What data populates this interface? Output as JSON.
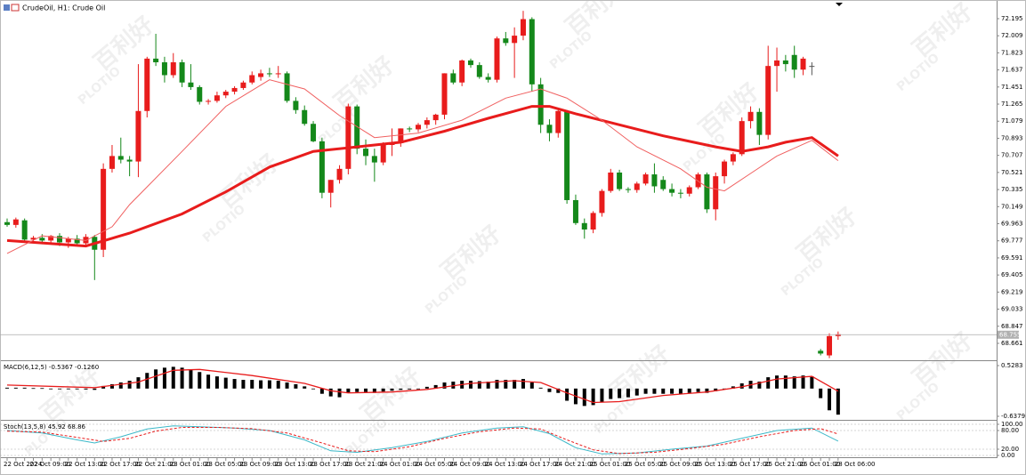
{
  "header": {
    "title": "CrudeOil, H1:  Crude Oil"
  },
  "watermark": [
    "百利好",
    "PLOTIO"
  ],
  "chart_data": [
    {
      "type": "candlestick",
      "categories": [
        "22 Oct 2024",
        null,
        null,
        "22 Oct 09:00",
        null,
        null,
        null,
        "22 Oct 13:00",
        null,
        null,
        null,
        "22 Oct 17:00",
        null,
        null,
        null,
        "22 Oct 21:00",
        null,
        null,
        null,
        "23 Oct 01:00",
        null,
        null,
        null,
        "23 Oct 05:00",
        null,
        null,
        null,
        "23 Oct 09:00",
        null,
        null,
        null,
        "23 Oct 13:00",
        null,
        null,
        null,
        "23 Oct 17:00",
        null,
        null,
        null,
        "23 Oct 21:00",
        null,
        null,
        null,
        "24 Oct 01:00",
        null,
        null,
        null,
        "24 Oct 05:00",
        null,
        null,
        null,
        "24 Oct 09:00",
        null,
        null,
        null,
        "24 Oct 13:00",
        null,
        null,
        null,
        "24 Oct 17:00",
        null,
        null,
        null,
        "24 Oct 21:00",
        null,
        null,
        null,
        "25 Oct 01:00",
        null,
        null,
        null,
        "25 Oct 05:00",
        null,
        null,
        null,
        "25 Oct 09:00",
        null,
        null,
        null,
        "25 Oct 13:00",
        null,
        null,
        null,
        "25 Oct 17:00",
        null,
        null,
        null,
        "25 Oct 21:00",
        null,
        null,
        null,
        "26 Oct 01:00",
        null,
        null,
        null,
        "28 Oct 06:00"
      ],
      "open": [
        69.98,
        69.95,
        70.0,
        69.79,
        69.81,
        69.78,
        69.83,
        69.76,
        69.8,
        69.75,
        69.82,
        69.68,
        70.56,
        70.7,
        70.66,
        70.64,
        71.19,
        71.76,
        71.72,
        71.58,
        71.72,
        71.5,
        71.45,
        71.29,
        71.3,
        71.36,
        71.4,
        71.44,
        71.5,
        71.56,
        71.6,
        71.59,
        71.6,
        71.3,
        71.2,
        71.05,
        70.86,
        70.3,
        70.44,
        70.56,
        71.24,
        70.78,
        70.7,
        70.63,
        70.82,
        70.84,
        71.0,
        70.99,
        71.04,
        71.09,
        71.15,
        71.6,
        71.5,
        71.74,
        71.69,
        71.56,
        71.53,
        71.98,
        71.93,
        72.01,
        72.19,
        71.48,
        71.04,
        70.95,
        71.19,
        70.22,
        69.97,
        69.9,
        70.08,
        70.32,
        70.52,
        70.34,
        70.33,
        70.4,
        70.5,
        70.44,
        70.34,
        70.3,
        70.29,
        70.36,
        70.5,
        70.12,
        70.48,
        70.64,
        70.72,
        71.08,
        71.18,
        70.93,
        71.68,
        71.74,
        71.8,
        71.64,
        71.68,
        68.58,
        68.53,
        68.74
      ],
      "high": [
        70.02,
        70.03,
        70.02,
        69.83,
        69.85,
        69.84,
        69.86,
        69.82,
        69.84,
        69.85,
        69.84,
        70.62,
        70.82,
        70.9,
        70.7,
        71.7,
        71.78,
        72.03,
        71.78,
        71.82,
        71.75,
        71.7,
        71.47,
        71.32,
        71.4,
        71.42,
        71.46,
        71.52,
        71.62,
        71.64,
        71.66,
        71.68,
        71.62,
        71.34,
        71.25,
        71.08,
        70.9,
        70.44,
        70.6,
        71.27,
        71.26,
        70.88,
        70.78,
        70.85,
        71.0,
        71.0,
        71.02,
        71.06,
        71.12,
        71.16,
        71.6,
        71.64,
        71.75,
        71.76,
        71.72,
        71.6,
        72.0,
        72.05,
        72.1,
        72.28,
        72.21,
        71.55,
        71.1,
        71.22,
        71.2,
        70.28,
        70.02,
        70.1,
        70.34,
        70.56,
        70.55,
        70.36,
        70.42,
        70.52,
        70.62,
        70.48,
        70.4,
        70.34,
        70.38,
        70.52,
        70.52,
        70.52,
        70.66,
        70.74,
        71.12,
        71.24,
        71.22,
        71.9,
        71.88,
        71.8,
        71.9,
        71.78,
        71.72,
        68.6,
        68.77,
        68.79
      ],
      "low": [
        69.93,
        69.92,
        69.77,
        69.75,
        69.74,
        69.74,
        69.72,
        69.7,
        69.73,
        69.72,
        69.35,
        69.6,
        70.52,
        70.62,
        70.48,
        70.47,
        71.12,
        71.68,
        71.5,
        71.55,
        71.45,
        71.42,
        71.26,
        71.26,
        71.28,
        71.33,
        71.37,
        71.42,
        71.48,
        71.52,
        71.56,
        71.55,
        71.28,
        71.16,
        71.03,
        70.85,
        70.24,
        70.14,
        70.4,
        70.5,
        70.72,
        70.6,
        70.42,
        70.6,
        70.7,
        70.8,
        70.96,
        70.96,
        71.0,
        71.04,
        71.1,
        71.48,
        71.46,
        71.66,
        71.54,
        71.5,
        71.5,
        71.9,
        71.55,
        71.96,
        71.4,
        70.95,
        70.86,
        70.9,
        70.18,
        69.95,
        69.8,
        69.86,
        70.04,
        70.3,
        70.32,
        70.3,
        70.3,
        70.38,
        70.3,
        70.32,
        70.26,
        70.24,
        70.26,
        70.34,
        70.08,
        70.0,
        70.4,
        70.6,
        70.7,
        71.0,
        70.82,
        70.88,
        71.4,
        71.62,
        71.55,
        71.58,
        71.58,
        68.53,
        68.5,
        68.7
      ],
      "close": [
        69.95,
        70.01,
        69.79,
        69.81,
        69.78,
        69.83,
        69.76,
        69.8,
        69.75,
        69.82,
        69.68,
        70.56,
        70.7,
        70.66,
        70.64,
        71.19,
        71.76,
        71.72,
        71.58,
        71.72,
        71.5,
        71.45,
        71.29,
        71.3,
        71.36,
        71.4,
        71.44,
        71.5,
        71.58,
        71.6,
        71.59,
        71.6,
        71.3,
        71.2,
        71.05,
        70.86,
        70.3,
        70.44,
        70.56,
        71.24,
        70.78,
        70.7,
        70.63,
        70.82,
        70.84,
        71.0,
        70.99,
        71.04,
        71.09,
        71.15,
        71.6,
        71.5,
        71.74,
        71.69,
        71.56,
        71.53,
        71.98,
        71.93,
        72.01,
        72.19,
        71.48,
        71.04,
        70.95,
        71.19,
        70.22,
        69.97,
        69.9,
        70.08,
        70.32,
        70.52,
        70.34,
        70.33,
        70.4,
        70.5,
        70.37,
        70.34,
        70.3,
        70.29,
        70.36,
        70.5,
        70.12,
        70.48,
        70.64,
        70.72,
        71.08,
        71.18,
        70.93,
        71.68,
        71.74,
        71.7,
        71.64,
        71.76,
        71.68,
        68.55,
        68.74,
        68.76
      ],
      "up_color": "#e81c1c",
      "down_color": "#14881a",
      "series": [
        {
          "color": "#e81c1c",
          "width": 3,
          "x": [
            0,
            9,
            14,
            20,
            25,
            30,
            35,
            40,
            45,
            50,
            55,
            60,
            62,
            65,
            70,
            75,
            81,
            84,
            87,
            89,
            92,
            95
          ],
          "values": [
            69.78,
            69.72,
            69.86,
            70.07,
            70.31,
            70.58,
            70.75,
            70.8,
            70.85,
            70.97,
            71.11,
            71.24,
            71.24,
            71.16,
            71.04,
            70.92,
            70.8,
            70.75,
            70.8,
            70.85,
            70.9,
            70.7
          ]
        },
        {
          "color": "#f06060",
          "width": 1,
          "x": [
            0,
            4,
            9,
            12,
            14,
            20,
            25,
            30,
            34,
            38,
            42,
            47,
            52,
            57,
            61,
            64,
            68,
            72,
            77,
            80,
            82,
            85,
            88,
            92,
            95
          ],
          "values": [
            69.64,
            69.83,
            69.78,
            69.93,
            70.17,
            70.75,
            71.24,
            71.53,
            71.43,
            71.14,
            70.9,
            70.95,
            71.09,
            71.33,
            71.43,
            71.33,
            71.09,
            70.8,
            70.56,
            70.36,
            70.32,
            70.51,
            70.7,
            70.87,
            70.65
          ]
        }
      ],
      "ylim": [
        68.477,
        72.398
      ],
      "yticks": [
        72.195,
        72.009,
        71.823,
        71.637,
        71.451,
        71.265,
        71.079,
        70.893,
        70.707,
        70.521,
        70.335,
        70.149,
        69.963,
        69.777,
        69.591,
        69.405,
        69.219,
        69.033,
        68.847,
        68.661
      ],
      "current_price": 68.755,
      "grid": false
    },
    {
      "type": "macd",
      "title": "MACD(6,12,5) -0.5367 -0.1260",
      "histogram": {
        "color": "#000000",
        "values": [
          0.02,
          0.02,
          0.02,
          0.01,
          0.01,
          0.0,
          0.0,
          -0.01,
          -0.01,
          -0.02,
          -0.03,
          0.06,
          0.1,
          0.14,
          0.18,
          0.26,
          0.36,
          0.44,
          0.48,
          0.5,
          0.48,
          0.44,
          0.38,
          0.32,
          0.28,
          0.25,
          0.22,
          0.2,
          0.2,
          0.19,
          0.19,
          0.18,
          0.14,
          0.1,
          0.05,
          0.0,
          -0.12,
          -0.18,
          -0.2,
          -0.1,
          -0.08,
          -0.08,
          -0.1,
          -0.07,
          -0.05,
          -0.03,
          -0.02,
          0.0,
          0.04,
          0.08,
          0.14,
          0.16,
          0.18,
          0.18,
          0.17,
          0.16,
          0.2,
          0.2,
          0.2,
          0.22,
          0.14,
          0.02,
          -0.08,
          -0.1,
          -0.28,
          -0.36,
          -0.4,
          -0.38,
          -0.32,
          -0.24,
          -0.22,
          -0.2,
          -0.16,
          -0.12,
          -0.12,
          -0.12,
          -0.12,
          -0.12,
          -0.1,
          -0.08,
          -0.1,
          -0.06,
          0.0,
          0.05,
          0.12,
          0.18,
          0.16,
          0.26,
          0.3,
          0.3,
          0.28,
          0.3,
          0.28,
          -0.22,
          -0.5,
          -0.6
        ]
      },
      "series": [
        {
          "color": "#e81c1c",
          "width": 1.3,
          "x": [
            0,
            10,
            15,
            19,
            22,
            28,
            34,
            37,
            39,
            44,
            48,
            53,
            58,
            61,
            64,
            67,
            70,
            75,
            80,
            84,
            88,
            92,
            95
          ],
          "values": [
            0.08,
            0.02,
            0.15,
            0.42,
            0.44,
            0.3,
            0.12,
            -0.05,
            -0.1,
            -0.08,
            -0.02,
            0.12,
            0.18,
            0.14,
            -0.1,
            -0.32,
            -0.3,
            -0.16,
            -0.08,
            0.04,
            0.22,
            0.28,
            -0.06
          ]
        }
      ],
      "ylim": [
        -0.699,
        0.61
      ],
      "yticks": [
        0.5283,
        -0.6379
      ]
    },
    {
      "type": "stoch",
      "title": "Stoch(13,5,8) 45.92 68.86",
      "series": [
        {
          "color": "#3cb8c8",
          "width": 1,
          "x": [
            0,
            4,
            8,
            10,
            13,
            16,
            19,
            22,
            26,
            30,
            34,
            37,
            40,
            44,
            48,
            52,
            56,
            59,
            62,
            65,
            68,
            72,
            76,
            80,
            84,
            88,
            92,
            95
          ],
          "values": [
            80,
            72,
            50,
            40,
            60,
            85,
            95,
            92,
            88,
            80,
            50,
            15,
            10,
            25,
            45,
            72,
            88,
            92,
            70,
            25,
            5,
            8,
            20,
            30,
            55,
            80,
            88,
            46
          ]
        },
        {
          "color": "#e81c1c",
          "width": 1,
          "dash": "3,2",
          "x": [
            0,
            4,
            8,
            11,
            14,
            17,
            20,
            24,
            28,
            32,
            36,
            39,
            42,
            46,
            50,
            54,
            58,
            61,
            64,
            67,
            70,
            74,
            78,
            82,
            86,
            90,
            93,
            95
          ],
          "values": [
            78,
            75,
            58,
            45,
            55,
            78,
            90,
            90,
            86,
            72,
            40,
            15,
            12,
            28,
            55,
            76,
            88,
            85,
            50,
            18,
            6,
            10,
            22,
            36,
            60,
            80,
            86,
            69
          ]
        }
      ],
      "ylim": [
        -5.7,
        108.6
      ],
      "yticks": [
        {
          "value": 100,
          "label": "100.00"
        },
        {
          "value": 80,
          "label": "80.00"
        },
        {
          "value": 20,
          "label": "20.00"
        },
        {
          "value": 0,
          "label": "0.00"
        }
      ],
      "grid": true
    }
  ]
}
